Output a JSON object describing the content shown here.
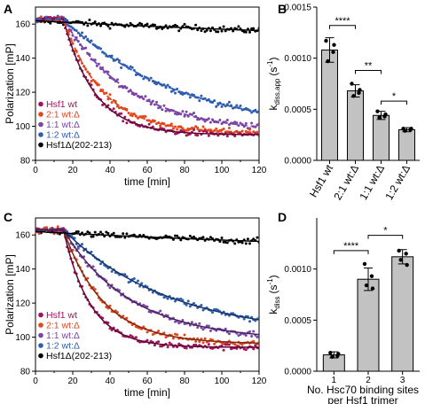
{
  "chart_data": [
    {
      "panel": "A",
      "type": "scatter",
      "ylabel": "Polarization [mP]",
      "xlabel": "time [min]",
      "xlim": [
        0,
        120
      ],
      "ylim": [
        80,
        170
      ],
      "xticks": [
        0,
        20,
        40,
        60,
        80,
        100,
        120
      ],
      "yticks": [
        80,
        100,
        120,
        140,
        160
      ],
      "legend_position": "bottom-left",
      "series": [
        {
          "name": "Hsf1 wt",
          "color": "#a3135c",
          "start": 163,
          "plateau": 95,
          "t_half": 11.5,
          "lag": 15,
          "fit": "solid"
        },
        {
          "name": "2:1 wt:Δ",
          "color": "#e4461c",
          "start": 163,
          "plateau": 96,
          "t_half": 14.5,
          "lag": 15,
          "fit": "dashed"
        },
        {
          "name": "1:1 wt:Δ",
          "color": "#7b44a6",
          "start": 163,
          "plateau": 96,
          "t_half": 25,
          "lag": 15,
          "fit": "dashed"
        },
        {
          "name": "1:2 wt:Δ",
          "color": "#2e5db0",
          "start": 163,
          "plateau": 96,
          "t_half": 43,
          "lag": 15,
          "fit": "dashed"
        },
        {
          "name": "Hsf1Δ(202-213)",
          "color": "#000000",
          "start": 162,
          "plateau": 145,
          "t_half": 200,
          "lag": 0,
          "fit": "solid"
        }
      ]
    },
    {
      "panel": "B",
      "type": "bar",
      "ylabel": "k",
      "ylabel_sub": "diss,app",
      "ylabel_unit": "(s",
      "ylabel_sup": "-1",
      "ylabel_close": ")",
      "ylim": [
        0,
        0.0015
      ],
      "yticks": [
        0.0,
        0.0005,
        0.001,
        0.0015
      ],
      "ytick_labels": [
        "0.0000",
        "0.0005",
        "0.0010",
        "0.0015"
      ],
      "categories": [
        "Hsf1 wt",
        "2:1 wt:Δ",
        "1:1 wt:Δ",
        "1:2 wt:Δ"
      ],
      "values": [
        0.00108,
        0.00068,
        0.00044,
        0.0003
      ],
      "errors": [
        0.00012,
        6e-05,
        4e-05,
        2e-05
      ],
      "points": [
        [
          0.00117,
          0.00106,
          0.00097,
          0.00113
        ],
        [
          0.00075,
          0.00066,
          0.00063,
          0.00069
        ],
        [
          0.00048,
          0.00043,
          0.00042,
          0.00045
        ],
        [
          0.00031,
          0.0003,
          0.00029,
          0.00031
        ]
      ],
      "significance": [
        {
          "from": 0,
          "to": 1,
          "label": "****",
          "y": 0.00132
        },
        {
          "from": 1,
          "to": 2,
          "label": "**",
          "y": 0.00088
        },
        {
          "from": 2,
          "to": 3,
          "label": "*",
          "y": 0.00058
        }
      ]
    },
    {
      "panel": "C",
      "type": "scatter",
      "ylabel": "Polarization [mP]",
      "xlabel": "time [min]",
      "xlim": [
        0,
        120
      ],
      "ylim": [
        80,
        170
      ],
      "xticks": [
        0,
        20,
        40,
        60,
        80,
        100,
        120
      ],
      "yticks": [
        80,
        100,
        120,
        140,
        160
      ],
      "legend_position": "bottom-left",
      "series": [
        {
          "name": "Hsf1 wt",
          "color": "#a3135c",
          "start": 163,
          "plateau": 94,
          "t_half": 10,
          "lag": 15,
          "fit": "solid"
        },
        {
          "name": "2:1 wt:Δ",
          "color": "#e4461c",
          "start": 163,
          "plateau": 96,
          "t_half": 15,
          "lag": 15,
          "fit": "solid"
        },
        {
          "name": "1:1 wt:Δ",
          "color": "#7b44a6",
          "start": 163,
          "plateau": 98,
          "t_half": 25,
          "lag": 15,
          "fit": "solid"
        },
        {
          "name": "1:2 wt:Δ",
          "color": "#2e5db0",
          "start": 163,
          "plateau": 100,
          "t_half": 40,
          "lag": 15,
          "fit": "solid"
        },
        {
          "name": "Hsf1Δ(202-213)",
          "color": "#000000",
          "start": 162,
          "plateau": 145,
          "t_half": 200,
          "lag": 0,
          "fit": "solid"
        }
      ]
    },
    {
      "panel": "D",
      "type": "bar",
      "ylabel": "k",
      "ylabel_sub": "diss",
      "ylabel_unit": "(s",
      "ylabel_sup": "-1",
      "ylabel_close": ")",
      "xlabel_line1": "No. Hsc70 binding sites",
      "xlabel_line2": "per Hsf1 trimer",
      "ylim": [
        0,
        0.0015
      ],
      "yticks": [
        0.0,
        0.0005,
        0.001
      ],
      "ytick_labels": [
        "0.0000",
        "0.0005",
        "0.0010"
      ],
      "categories": [
        "1",
        "2",
        "3"
      ],
      "values": [
        0.00016,
        0.0009,
        0.00112
      ],
      "errors": [
        3e-05,
        0.00011,
        7e-05
      ],
      "points": [
        [
          0.00018,
          0.00015,
          0.00014,
          0.00017
        ],
        [
          0.00105,
          0.00093,
          0.00084,
          0.00081
        ],
        [
          0.00118,
          0.00115,
          0.00109,
          0.00104
        ]
      ],
      "significance": [
        {
          "from": 0,
          "to": 1,
          "label": "****",
          "y": 0.00118
        },
        {
          "from": 1,
          "to": 2,
          "label": "*",
          "y": 0.00133
        }
      ]
    }
  ]
}
